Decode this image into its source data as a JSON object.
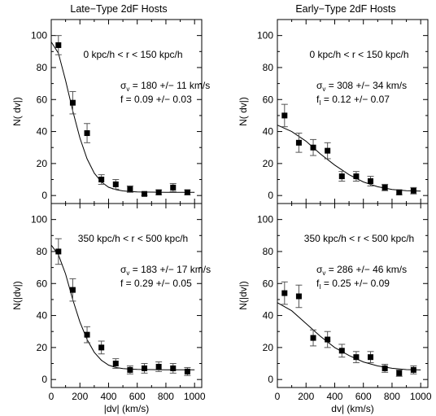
{
  "columns": [
    {
      "title": "Late−Type 2dF Hosts"
    },
    {
      "title": "Early−Type 2dF Hosts"
    }
  ],
  "rows": [
    {
      "xlabel": "",
      "ylabel": ""
    },
    {
      "xlabel": "",
      "ylabel": ""
    }
  ],
  "chart_data": [
    {
      "type": "scatter",
      "panel": "late-type top",
      "column_title": "Late−Type 2dF Hosts",
      "ylabel": "N( dv|)",
      "xlabel": "",
      "xlim": [
        0,
        1050
      ],
      "ylim": [
        -5,
        110
      ],
      "xticks": [
        0,
        200,
        400,
        600,
        800,
        1000
      ],
      "yticks": [
        0,
        20,
        40,
        60,
        80,
        100
      ],
      "annotations": {
        "range": "0 kpc/h < r < 150 kpc/h",
        "sigma": "180 +/− 11 km/s",
        "fi": "f = 0.09 +/− 0.03"
      },
      "points": [
        {
          "x": 50,
          "y": 94,
          "err": 6
        },
        {
          "x": 150,
          "y": 58,
          "err": 7
        },
        {
          "x": 250,
          "y": 39,
          "err": 6
        },
        {
          "x": 350,
          "y": 10,
          "err": 3
        },
        {
          "x": 450,
          "y": 7,
          "err": 3
        },
        {
          "x": 550,
          "y": 4,
          "err": 2
        },
        {
          "x": 650,
          "y": 1,
          "err": 1
        },
        {
          "x": 750,
          "y": 2,
          "err": 1.5
        },
        {
          "x": 850,
          "y": 5,
          "err": 2.5
        },
        {
          "x": 950,
          "y": 2,
          "err": 1.5
        }
      ],
      "fit": {
        "x": [
          0,
          50,
          100,
          150,
          200,
          250,
          300,
          350,
          400,
          450,
          500,
          550,
          600,
          700,
          800,
          900,
          1000
        ],
        "y": [
          96,
          89,
          72,
          53,
          36,
          23,
          14,
          8.5,
          5.2,
          3.7,
          2.9,
          2.5,
          2.3,
          2.1,
          2.0,
          2.0,
          2.0
        ]
      }
    },
    {
      "type": "scatter",
      "panel": "early-type top",
      "column_title": "Early−Type 2dF Hosts",
      "ylabel": "N( dv|)",
      "xlabel": "",
      "xlim": [
        0,
        1050
      ],
      "ylim": [
        -5,
        110
      ],
      "xticks": [
        0,
        200,
        400,
        600,
        800,
        1000
      ],
      "yticks": [
        0,
        20,
        40,
        60,
        80,
        100
      ],
      "annotations": {
        "range": "0 kpc/h < r < 150 kpc/h",
        "sigma": "308 +/− 34 km/s",
        "fi": "0.12 +/− 0.07"
      },
      "points": [
        {
          "x": 50,
          "y": 50,
          "err": 7
        },
        {
          "x": 150,
          "y": 33,
          "err": 6
        },
        {
          "x": 250,
          "y": 30,
          "err": 5
        },
        {
          "x": 350,
          "y": 28,
          "err": 5
        },
        {
          "x": 450,
          "y": 12,
          "err": 3
        },
        {
          "x": 550,
          "y": 12,
          "err": 3
        },
        {
          "x": 650,
          "y": 9,
          "err": 3
        },
        {
          "x": 750,
          "y": 5,
          "err": 2
        },
        {
          "x": 850,
          "y": 2,
          "err": 1.5
        },
        {
          "x": 950,
          "y": 3,
          "err": 2
        }
      ],
      "fit": {
        "x": [
          0,
          100,
          200,
          300,
          400,
          500,
          600,
          700,
          800,
          900,
          1000
        ],
        "y": [
          44,
          40,
          34,
          26,
          19,
          13,
          8.5,
          5.5,
          3.8,
          3.0,
          2.8
        ]
      }
    },
    {
      "type": "scatter",
      "panel": "late-type bottom",
      "column_title": "",
      "ylabel": "N(|dv|)",
      "xlabel": "|dv| (km/s)",
      "xlim": [
        0,
        1050
      ],
      "ylim": [
        -5,
        110
      ],
      "xticks": [
        0,
        200,
        400,
        600,
        800,
        1000
      ],
      "yticks": [
        0,
        20,
        40,
        60,
        80,
        100
      ],
      "annotations": {
        "range": "350 kpc/h < r < 500 kpc/h",
        "sigma": "183 +/− 17 km/s",
        "fi": "f = 0.29 +/− 0.05"
      },
      "points": [
        {
          "x": 50,
          "y": 80,
          "err": 8
        },
        {
          "x": 150,
          "y": 56,
          "err": 7
        },
        {
          "x": 250,
          "y": 28,
          "err": 5
        },
        {
          "x": 350,
          "y": 20,
          "err": 4
        },
        {
          "x": 450,
          "y": 10,
          "err": 3
        },
        {
          "x": 550,
          "y": 6,
          "err": 2.5
        },
        {
          "x": 650,
          "y": 7,
          "err": 3
        },
        {
          "x": 750,
          "y": 8,
          "err": 3
        },
        {
          "x": 850,
          "y": 7,
          "err": 3
        },
        {
          "x": 950,
          "y": 5,
          "err": 2.5
        }
      ],
      "fit": {
        "x": [
          0,
          50,
          100,
          150,
          200,
          250,
          300,
          350,
          400,
          450,
          500,
          550,
          600,
          700,
          800,
          900,
          1000
        ],
        "y": [
          84,
          78,
          66,
          50,
          36,
          25,
          17,
          12,
          9,
          7.5,
          6.8,
          6.5,
          6.3,
          6.2,
          6.1,
          6.1,
          6.1
        ]
      }
    },
    {
      "type": "scatter",
      "panel": "early-type bottom",
      "column_title": "",
      "ylabel": "N(|dv|)",
      "xlabel": "dv| (km/s)",
      "xlim": [
        0,
        1050
      ],
      "ylim": [
        -5,
        110
      ],
      "xticks": [
        0,
        200,
        400,
        600,
        800,
        1000
      ],
      "yticks": [
        0,
        20,
        40,
        60,
        80,
        100
      ],
      "annotations": {
        "range": "350 kpc/h < r < 500 kpc/h",
        "sigma": "286 +/− 46 km/s",
        "fi": "0.25 +/− 0.09"
      },
      "points": [
        {
          "x": 50,
          "y": 54,
          "err": 7
        },
        {
          "x": 150,
          "y": 52,
          "err": 7
        },
        {
          "x": 250,
          "y": 26,
          "err": 5
        },
        {
          "x": 350,
          "y": 25,
          "err": 5
        },
        {
          "x": 450,
          "y": 18,
          "err": 4
        },
        {
          "x": 550,
          "y": 14,
          "err": 3.5
        },
        {
          "x": 650,
          "y": 14,
          "err": 3.5
        },
        {
          "x": 750,
          "y": 7,
          "err": 2.5
        },
        {
          "x": 850,
          "y": 4,
          "err": 2
        },
        {
          "x": 950,
          "y": 6,
          "err": 2.5
        }
      ],
      "fit": {
        "x": [
          0,
          100,
          200,
          300,
          400,
          500,
          600,
          700,
          800,
          900,
          1000
        ],
        "y": [
          48,
          43,
          35,
          27,
          20,
          15,
          11,
          8.5,
          7,
          6.2,
          6
        ]
      }
    }
  ]
}
